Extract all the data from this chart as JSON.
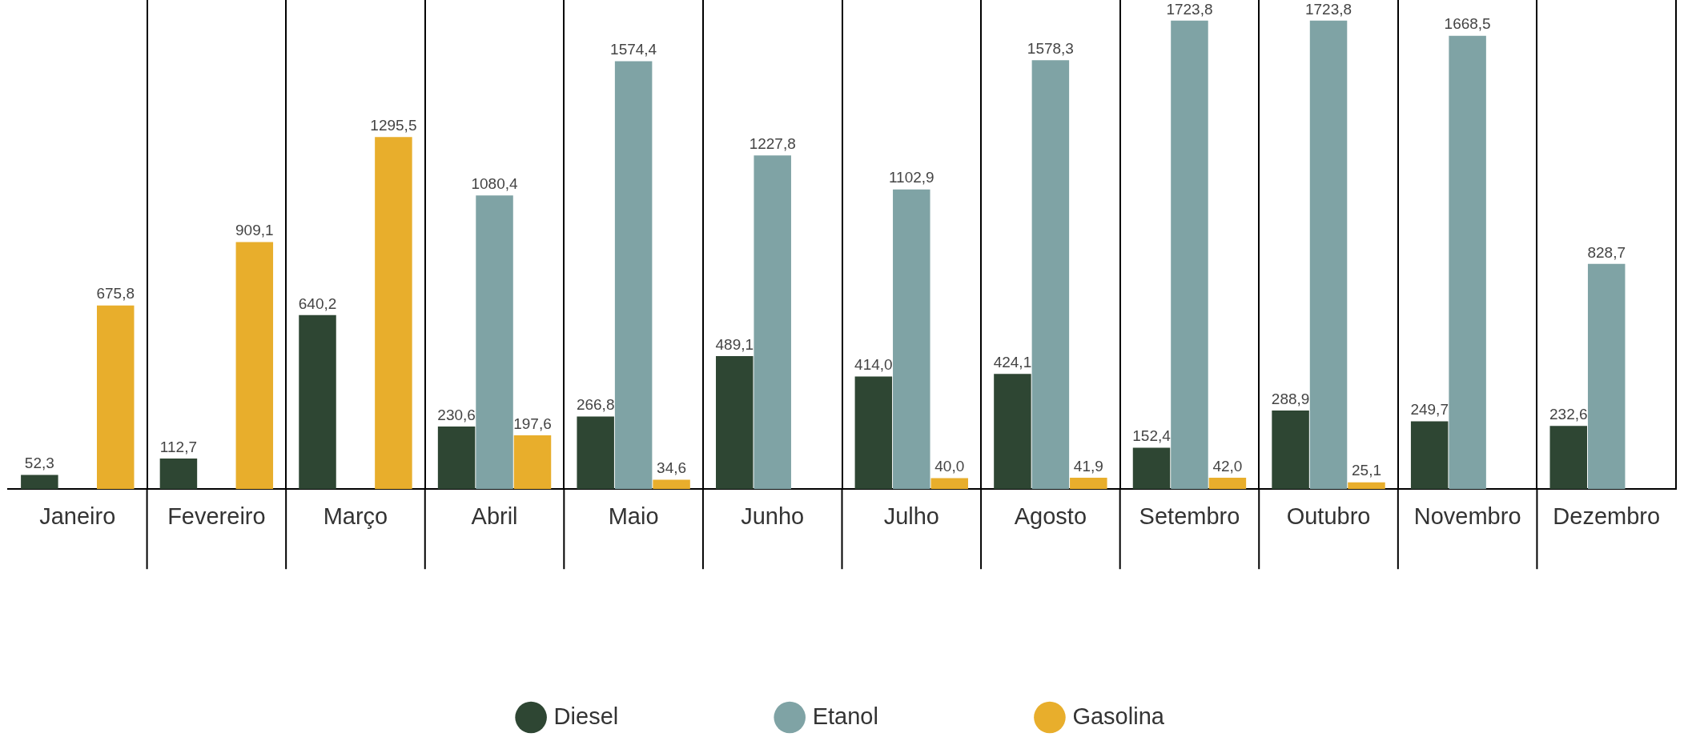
{
  "chart_data": {
    "type": "bar",
    "categories": [
      "Janeiro",
      "Fevereiro",
      "Março",
      "Abril",
      "Maio",
      "Junho",
      "Julho",
      "Agosto",
      "Setembro",
      "Outubro",
      "Novembro",
      "Dezembro"
    ],
    "series": [
      {
        "name": "Diesel",
        "color": "#2e4633",
        "values": [
          52.3,
          112.7,
          640.2,
          230.6,
          266.8,
          489.1,
          414.0,
          424.1,
          152.4,
          288.9,
          249.7,
          232.6
        ],
        "value_labels": [
          "52,3",
          "112,7",
          "640,2",
          "230,6",
          "266,8",
          "489,1",
          "414,0",
          "424,1",
          "152,4",
          "288,9",
          "249,7",
          "232,6"
        ]
      },
      {
        "name": "Etanol",
        "color": "#7fa3a5",
        "values": [
          null,
          null,
          null,
          1080.4,
          1574.4,
          1227.8,
          1102.9,
          1578.3,
          1723.8,
          1723.8,
          1668.5,
          828.7
        ],
        "value_labels": [
          null,
          null,
          null,
          "1080,4",
          "1574,4",
          "1227,8",
          "1102,9",
          "1578,3",
          "1723,8",
          "1723,8",
          "1668,5",
          "828,7"
        ]
      },
      {
        "name": "Gasolina",
        "color": "#e8ae2c",
        "values": [
          675.8,
          909.1,
          1295.5,
          197.6,
          34.6,
          null,
          40.0,
          41.9,
          42.0,
          25.1,
          null,
          null
        ],
        "value_labels": [
          "675,8",
          "909,1",
          "1295,5",
          "197,6",
          "34,6",
          null,
          "40,0",
          "41,9",
          "42,0",
          "25,1",
          null,
          null
        ]
      }
    ],
    "grid": "x",
    "legend": "bottom",
    "marker": "circle"
  }
}
